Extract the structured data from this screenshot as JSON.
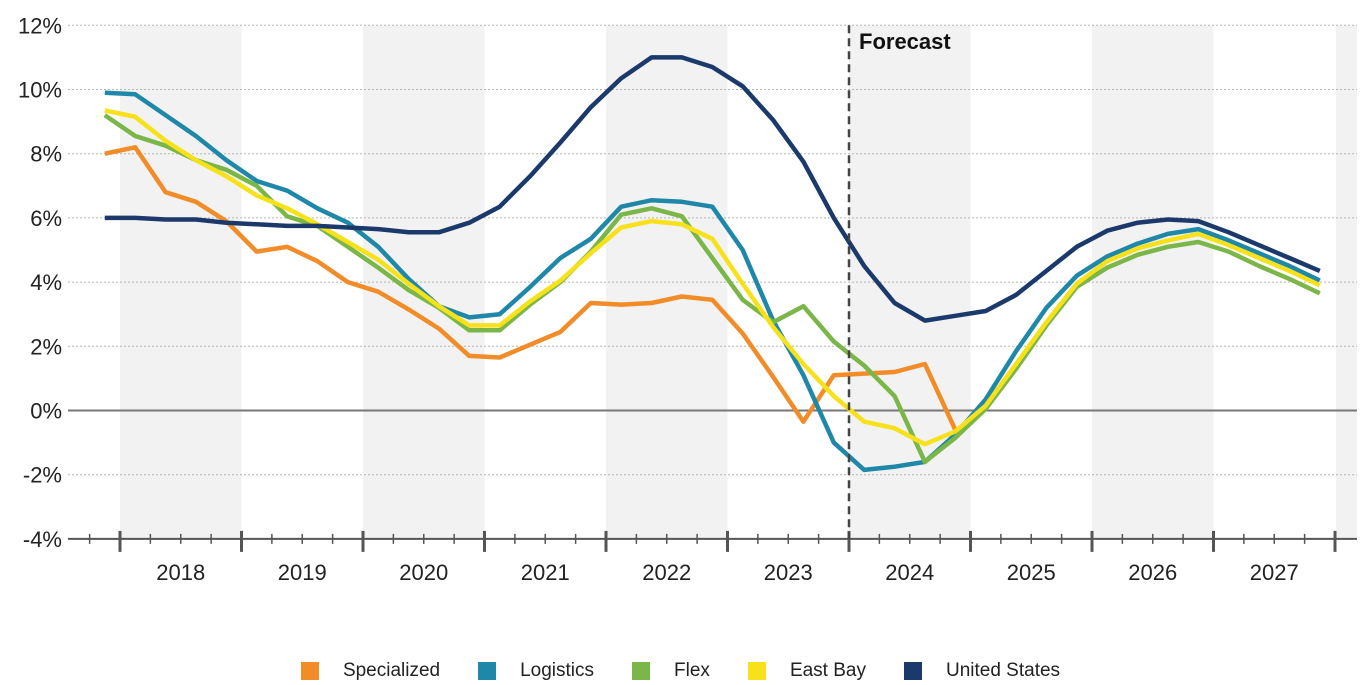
{
  "chart_data": {
    "type": "line",
    "title": "",
    "xlabel": "",
    "ylabel": "",
    "annotation": "Forecast",
    "forecast_start": 2023.5,
    "x": [
      2017.375,
      2017.625,
      2017.875,
      2018.125,
      2018.375,
      2018.625,
      2018.875,
      2019.125,
      2019.375,
      2019.625,
      2019.875,
      2020.125,
      2020.375,
      2020.625,
      2020.875,
      2021.125,
      2021.375,
      2021.625,
      2021.875,
      2022.125,
      2022.375,
      2022.625,
      2022.875,
      2023.125,
      2023.375,
      2023.625,
      2023.875,
      2024.125,
      2024.375,
      2024.625,
      2024.875,
      2025.125,
      2025.375,
      2025.625,
      2025.875,
      2026.125,
      2026.375,
      2026.625,
      2026.875,
      2027.125,
      2027.375
    ],
    "ylim": [
      -4,
      12
    ],
    "yticks": [
      -4,
      -2,
      0,
      2,
      4,
      6,
      8,
      10,
      12
    ],
    "ytick_labels": [
      "-4%",
      "-2%",
      "0%",
      "2%",
      "4%",
      "6%",
      "8%",
      "10%",
      "12%"
    ],
    "years": [
      "2018",
      "2019",
      "2020",
      "2021",
      "2022",
      "2023",
      "2024",
      "2025",
      "2026",
      "2027"
    ],
    "series": [
      {
        "name": "Specialized",
        "color": "#f28c28",
        "values": [
          8.0,
          8.2,
          6.8,
          6.5,
          5.9,
          4.95,
          5.1,
          4.65,
          4.0,
          3.7,
          3.15,
          2.55,
          1.7,
          1.65,
          2.05,
          2.45,
          3.35,
          3.3,
          3.35,
          3.55,
          3.45,
          2.4,
          1.05,
          -0.35,
          1.1,
          1.15,
          1.2,
          1.45,
          -0.6,
          null,
          null,
          null,
          null,
          null,
          null,
          null,
          null,
          null,
          null,
          null,
          null
        ]
      },
      {
        "name": "Logistics",
        "color": "#1f88a8",
        "values": [
          9.9,
          9.85,
          9.2,
          8.55,
          7.8,
          7.15,
          6.85,
          6.3,
          5.85,
          5.1,
          4.1,
          3.25,
          2.9,
          3.0,
          3.85,
          4.75,
          5.35,
          6.35,
          6.55,
          6.5,
          6.35,
          5.0,
          2.8,
          1.1,
          -1.0,
          -1.85,
          -1.75,
          -1.6,
          -0.75,
          0.35,
          1.85,
          3.2,
          4.2,
          4.8,
          5.2,
          5.5,
          5.65,
          5.3,
          4.9,
          4.5,
          4.05
        ]
      },
      {
        "name": "Flex",
        "color": "#7ab648",
        "values": [
          9.2,
          8.55,
          8.25,
          7.8,
          7.5,
          7.0,
          6.05,
          5.75,
          5.1,
          4.45,
          3.75,
          3.2,
          2.5,
          2.5,
          3.3,
          4.0,
          4.95,
          6.1,
          6.3,
          6.05,
          4.75,
          3.45,
          2.75,
          3.25,
          2.15,
          1.4,
          0.45,
          -1.6,
          -0.85,
          0.05,
          1.3,
          2.65,
          3.85,
          4.45,
          4.85,
          5.1,
          5.25,
          4.95,
          4.5,
          4.1,
          3.65
        ]
      },
      {
        "name": "East Bay",
        "color": "#f7e11a",
        "values": [
          9.35,
          9.15,
          8.4,
          7.8,
          7.3,
          6.7,
          6.3,
          5.8,
          5.25,
          4.7,
          3.95,
          3.25,
          2.65,
          2.65,
          3.4,
          4.05,
          4.9,
          5.7,
          5.9,
          5.8,
          5.35,
          3.95,
          2.6,
          1.45,
          0.45,
          -0.35,
          -0.55,
          -1.05,
          -0.65,
          0.15,
          1.45,
          2.75,
          3.95,
          4.65,
          5.05,
          5.3,
          5.5,
          5.15,
          4.75,
          4.35,
          3.9
        ]
      },
      {
        "name": "United States",
        "color": "#1b3a6b",
        "values": [
          6.0,
          6.0,
          5.95,
          5.95,
          5.85,
          5.8,
          5.75,
          5.75,
          5.7,
          5.65,
          5.55,
          5.55,
          5.85,
          6.35,
          7.3,
          8.35,
          9.45,
          10.35,
          11.0,
          11.0,
          10.7,
          10.1,
          9.05,
          7.75,
          6.0,
          4.5,
          3.35,
          2.8,
          2.95,
          3.1,
          3.6,
          4.35,
          5.1,
          5.6,
          5.85,
          5.95,
          5.9,
          5.55,
          5.15,
          4.75,
          4.35
        ]
      }
    ]
  }
}
